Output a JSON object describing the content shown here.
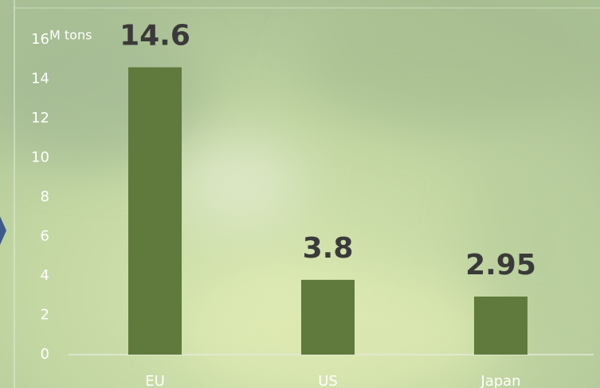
{
  "chart_data": {
    "type": "bar",
    "unit_label": "M tons",
    "categories": [
      "EU",
      "US",
      "Japan"
    ],
    "values": [
      14.6,
      3.8,
      2.95
    ],
    "color": "#5f7a3c",
    "ylim": [
      0,
      16
    ],
    "yticks": [
      0,
      2,
      4,
      6,
      8,
      10,
      12,
      14,
      16
    ],
    "grid": false
  }
}
